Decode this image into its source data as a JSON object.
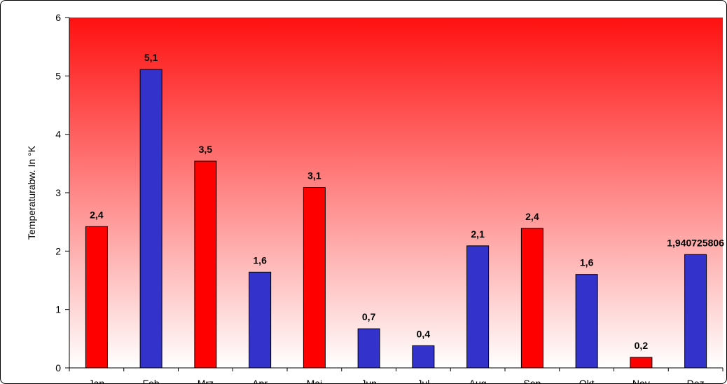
{
  "chart_data": {
    "type": "bar",
    "title": "",
    "xlabel": "",
    "ylabel": "Temperaturabw.  In °K",
    "ylim": [
      0,
      6
    ],
    "yticks": [
      "0",
      "1",
      "2",
      "3",
      "4",
      "5",
      "6"
    ],
    "grid": false,
    "legend": "none",
    "categories": [
      "Jan",
      "Feb",
      "Mrz",
      "Apr",
      "Mai",
      "Jun",
      "Jul",
      "Aug",
      "Sep",
      "Okt",
      "Nov",
      "Dez"
    ],
    "values": [
      2.42,
      5.11,
      3.54,
      1.64,
      3.09,
      0.67,
      0.38,
      2.09,
      2.39,
      1.6,
      0.18,
      1.940725806
    ],
    "data_labels": [
      "2,4",
      "5,1",
      "3,5",
      "1,6",
      "3,1",
      "0,7",
      "0,4",
      "2,1",
      "2,4",
      "1,6",
      "0,2",
      "1,940725806"
    ],
    "bar_colors": [
      "#ff0000",
      "#3333cc",
      "#ff0000",
      "#3333cc",
      "#ff0000",
      "#3333cc",
      "#3333cc",
      "#3333cc",
      "#ff0000",
      "#3333cc",
      "#ff0000",
      "#3333cc"
    ],
    "plot_background": {
      "top": "#ff1010",
      "bottom": "#ffffff"
    }
  }
}
